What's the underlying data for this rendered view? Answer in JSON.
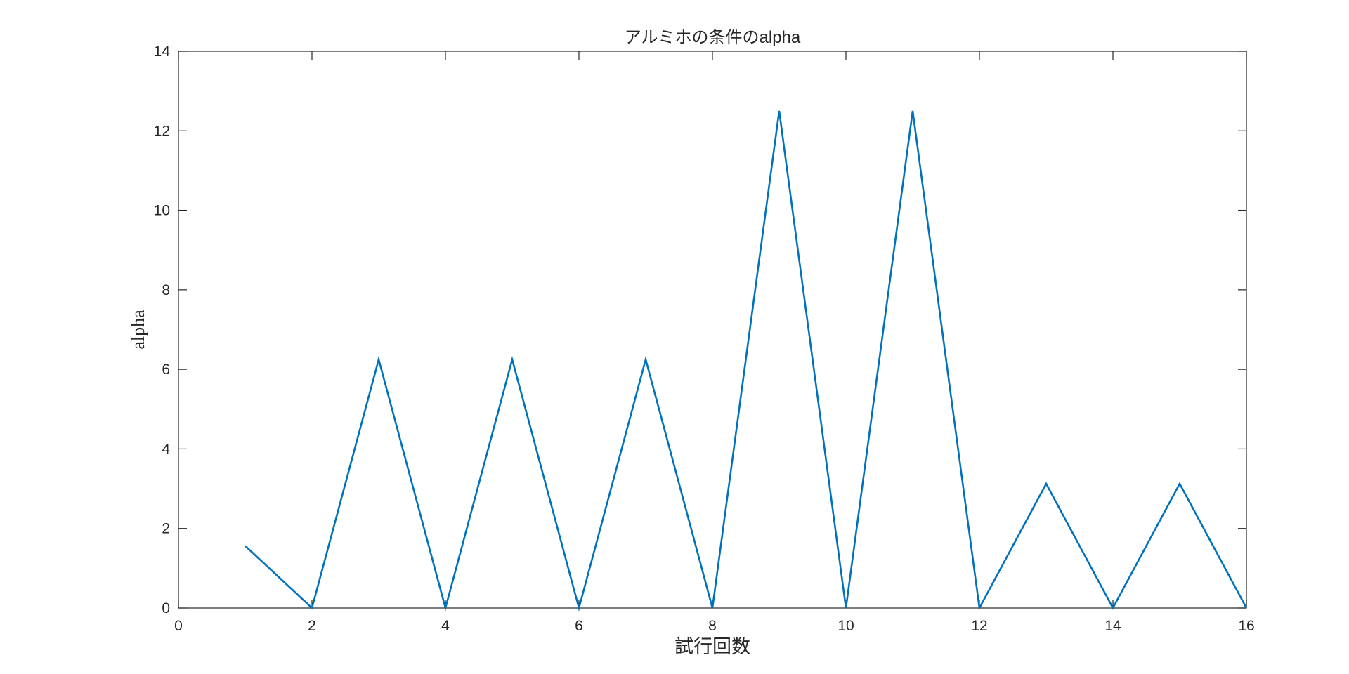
{
  "chart_data": {
    "type": "line",
    "title": "アルミホの条件のalpha",
    "xlabel": "試行回数",
    "ylabel": "alpha",
    "xlim": [
      0,
      16
    ],
    "ylim": [
      0,
      14
    ],
    "xticks": [
      0,
      2,
      4,
      6,
      8,
      10,
      12,
      14,
      16
    ],
    "yticks": [
      0,
      2,
      4,
      6,
      8,
      10,
      12,
      14
    ],
    "grid": false,
    "box": true,
    "series": [
      {
        "color": "#0072BD",
        "x": [
          1,
          2,
          3,
          4,
          5,
          6,
          7,
          8,
          9,
          10,
          11,
          12,
          13,
          14,
          15,
          16
        ],
        "y": [
          1.5625,
          0,
          6.25,
          0,
          6.25,
          0,
          6.25,
          0,
          12.5,
          0,
          12.5,
          0,
          3.125,
          0,
          3.125,
          0
        ]
      }
    ]
  }
}
